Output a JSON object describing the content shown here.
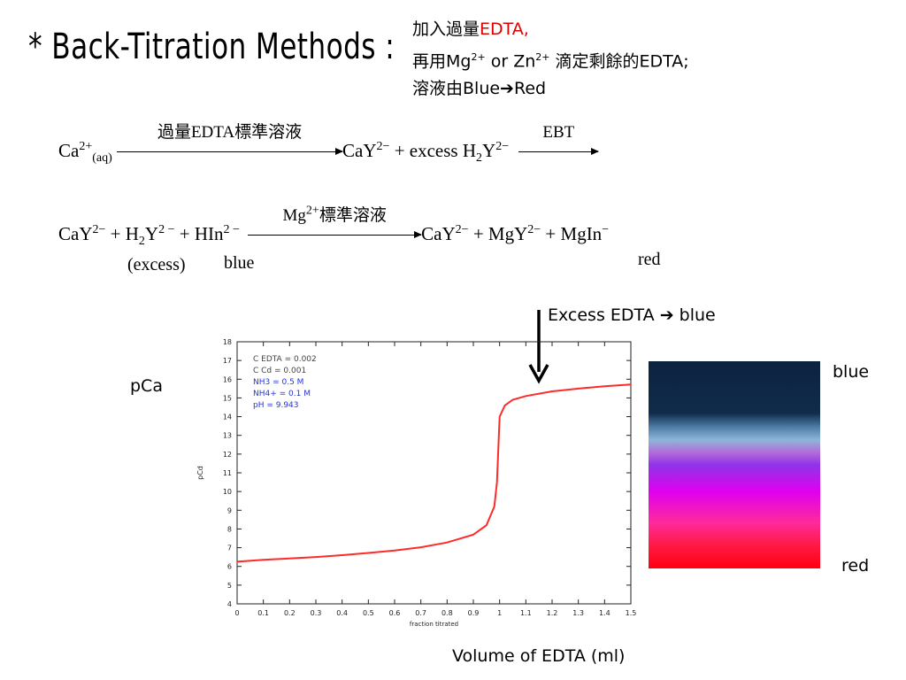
{
  "slide": {
    "title": "* Back-Titration Methods :",
    "note": {
      "line1_prefix": "加入過量",
      "line1_red": "EDTA,",
      "line2_a": "再用Mg",
      "line2_a_sup": "2+",
      "line2_b": " or Zn",
      "line2_b_sup": "2+",
      "line2_c": " 滴定剩餘的EDTA;",
      "line3_a": "溶液由Blue",
      "line3_arrow": "➔",
      "line3_b": "Red"
    },
    "eq1": {
      "ca": "Ca",
      "ca_sup": "2+",
      "ca_sub": "(aq)",
      "arrow_label": "過量EDTA標準溶液",
      "product": "CaY",
      "product_sup": "2−",
      "plus_excess": " + excess  H",
      "h_sub": "2",
      "y": "Y",
      "y_sup": "2−",
      "arrow2_label": "EBT"
    },
    "eq2": {
      "cay": "CaY",
      "cay_sup": "2−",
      "plus_h": " + H",
      "h_sub": "2",
      "y": "Y",
      "y_sup": "2 −",
      "plus_hin": " + HIn",
      "hin_sup": "2 −",
      "arrow_label_a": "Mg",
      "arrow_label_sup": "2+",
      "arrow_label_b": "標準溶液",
      "p_cay": "CaY",
      "p_cay_sup": "2−",
      "p_mgy": " + MgY",
      "p_mgy_sup": "2−",
      "p_mgin": " + MgIn",
      "p_mgin_sup": "−",
      "below_excess": "(excess)",
      "below_blue": "blue",
      "below_red": "red"
    },
    "annotation": {
      "text_a": "Excess EDTA ",
      "arrow": "➔",
      "text_b": " blue"
    },
    "pca_label": "pCa",
    "x_axis_caption": "Volume of EDTA (ml)",
    "colorbar": {
      "top_label": "blue",
      "bottom_label": "red",
      "colors": [
        "#0c2340",
        "#8fb5d9",
        "#8f34e8",
        "#e000ef",
        "#ff0010"
      ]
    }
  },
  "chart_data": {
    "type": "line",
    "xlabel": "fraction titrated",
    "ylabel": "pCd",
    "xlim": [
      0,
      1.5
    ],
    "ylim": [
      4,
      18
    ],
    "xticks": [
      "0",
      "0.1",
      "0.2",
      "0.3",
      "0.4",
      "0.5",
      "0.6",
      "0.7",
      "0.8",
      "0.9",
      "1",
      "1.1",
      "1.2",
      "1.3",
      "1.4",
      "1.5"
    ],
    "yticks": [
      "4",
      "5",
      "6",
      "7",
      "8",
      "9",
      "10",
      "11",
      "12",
      "13",
      "14",
      "15",
      "16",
      "17",
      "18"
    ],
    "legend_lines": [
      {
        "text": "C EDTA = 0.002",
        "color": "#444444"
      },
      {
        "text": "C Cd = 0.001",
        "color": "#444444"
      },
      {
        "text": "NH3 = 0.5 M",
        "color": "#2233dd"
      },
      {
        "text": "NH4+ = 0.1 M",
        "color": "#2233dd"
      },
      {
        "text": "pH = 9.943",
        "color": "#2233dd"
      }
    ],
    "series": [
      {
        "color": "#ff2a2a",
        "points": [
          [
            0.0,
            6.25
          ],
          [
            0.1,
            6.35
          ],
          [
            0.2,
            6.42
          ],
          [
            0.3,
            6.5
          ],
          [
            0.4,
            6.6
          ],
          [
            0.5,
            6.72
          ],
          [
            0.6,
            6.85
          ],
          [
            0.7,
            7.02
          ],
          [
            0.8,
            7.28
          ],
          [
            0.9,
            7.7
          ],
          [
            0.95,
            8.2
          ],
          [
            0.98,
            9.2
          ],
          [
            0.99,
            10.5
          ],
          [
            1.0,
            14.0
          ],
          [
            1.02,
            14.6
          ],
          [
            1.05,
            14.9
          ],
          [
            1.1,
            15.1
          ],
          [
            1.2,
            15.35
          ],
          [
            1.3,
            15.5
          ],
          [
            1.4,
            15.62
          ],
          [
            1.5,
            15.72
          ]
        ]
      }
    ]
  }
}
